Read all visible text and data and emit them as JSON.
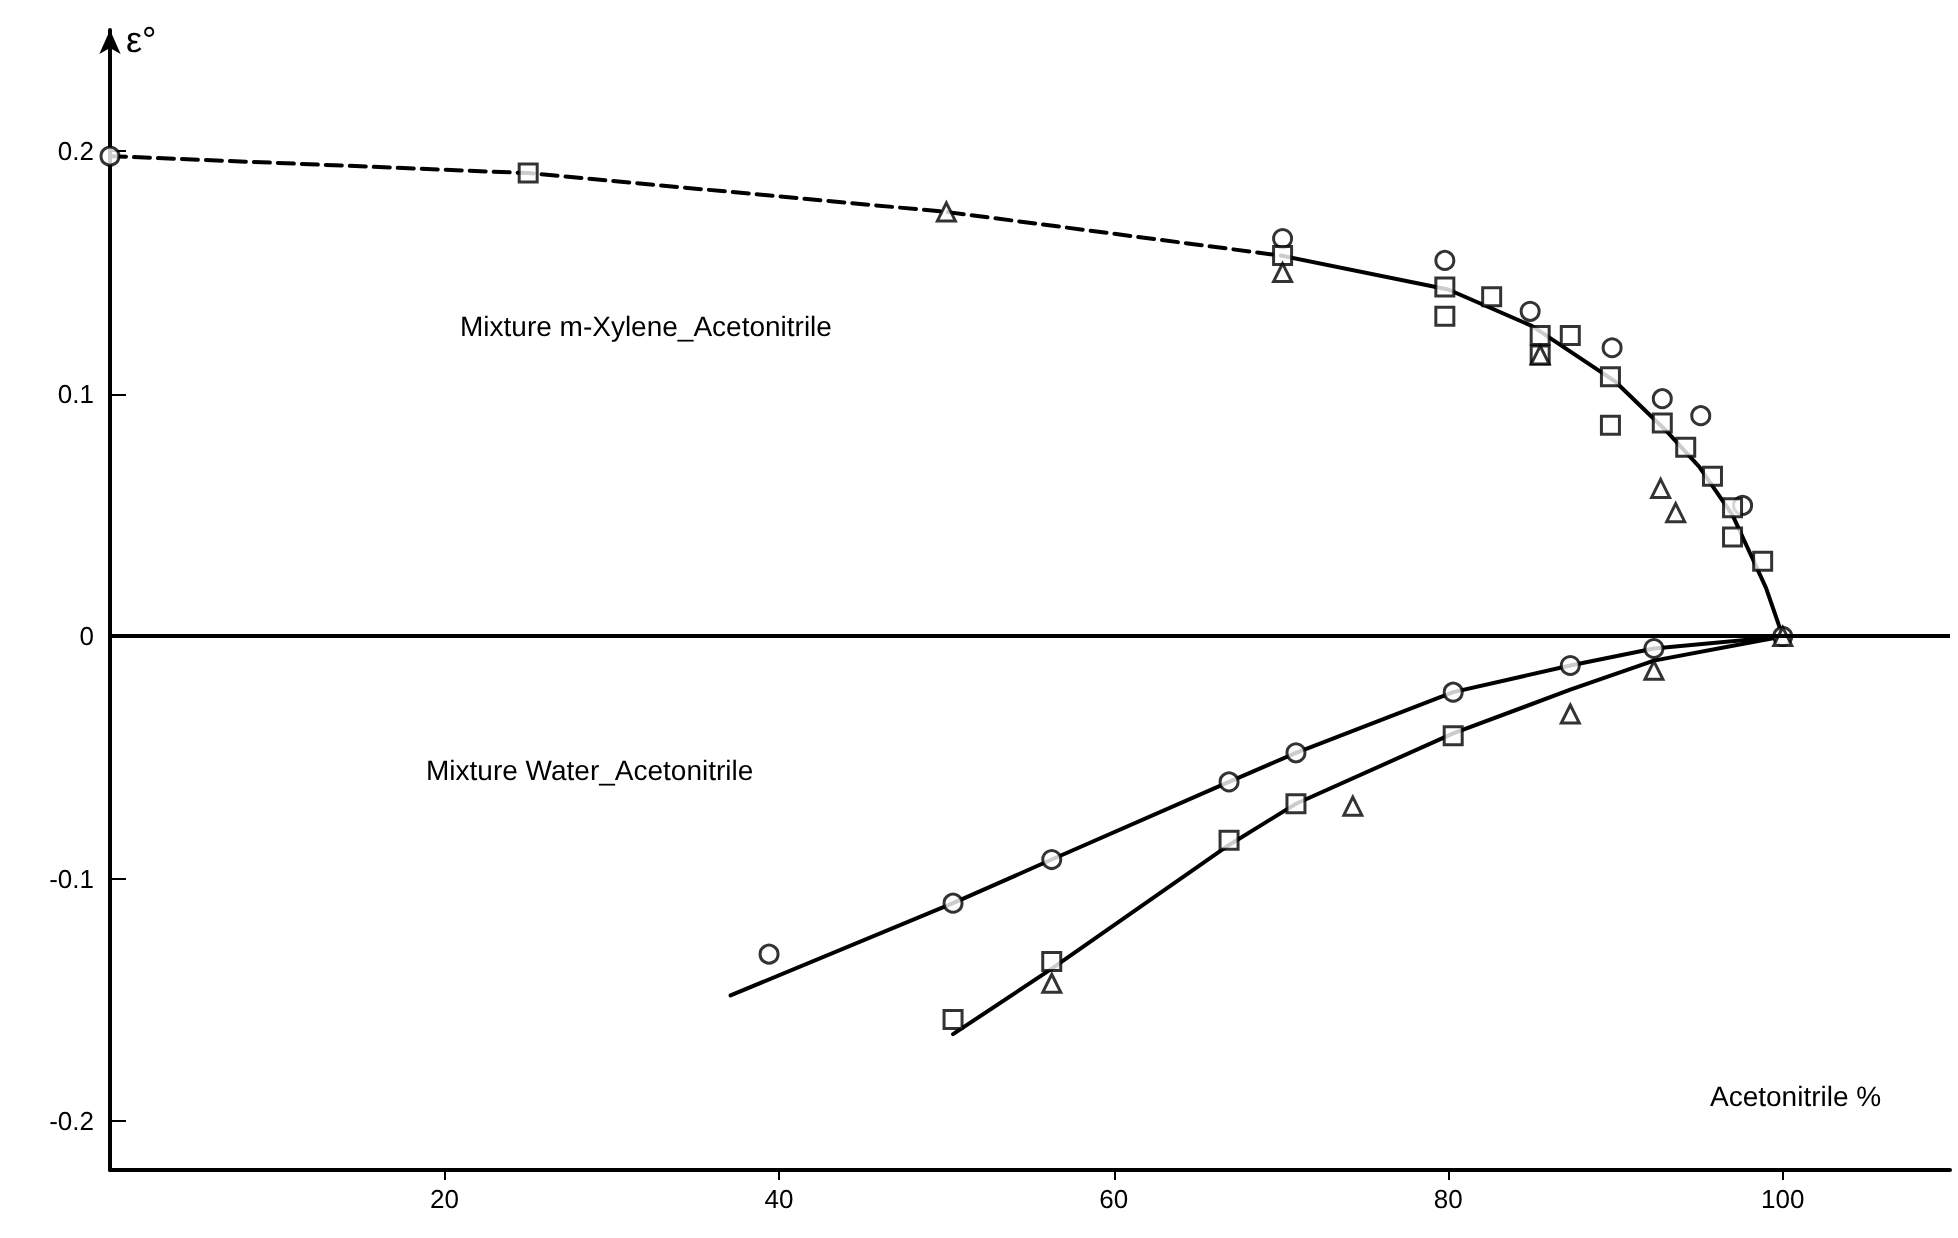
{
  "chart_data": {
    "type": "line",
    "xlabel": "Acetonitrile %",
    "ylabel": "ε°",
    "xlim": [
      0,
      110
    ],
    "xticks": [
      20,
      40,
      60,
      80,
      100
    ],
    "ylim": [
      -0.22,
      0.25
    ],
    "yticks": [
      -0.2,
      -0.1,
      0,
      0.1,
      0.2
    ],
    "grid": false,
    "ref_lines": [
      {
        "axis": "y",
        "value": 0,
        "color": "#000000"
      }
    ],
    "annotations": [
      "Mixture m-Xylene_Acetonitrile",
      "Mixture Water_Acetonitrile"
    ],
    "series": [
      {
        "color": "#000000",
        "line_style": "dashed",
        "marker": "none",
        "x": [
          0,
          25,
          50,
          70
        ],
        "values": [
          0.198,
          0.191,
          0.175,
          0.157
        ]
      },
      {
        "color": "#000000",
        "line_style": "solid",
        "marker": "none",
        "x": [
          70,
          80,
          85,
          90,
          93,
          95,
          97,
          98,
          99,
          100
        ],
        "values": [
          0.157,
          0.143,
          0.128,
          0.105,
          0.085,
          0.07,
          0.05,
          0.035,
          0.02,
          0
        ]
      },
      {
        "color": "#000000",
        "line_style": "solid",
        "marker": "none",
        "x": [
          37.1,
          50.4,
          56.3,
          66.9,
          70.9,
          80.3,
          87.3,
          92.3,
          100
        ],
        "values": [
          -0.148,
          -0.11,
          -0.092,
          -0.06,
          -0.048,
          -0.023,
          -0.012,
          -0.005,
          0
        ]
      },
      {
        "color": "#000000",
        "line_style": "solid",
        "marker": "none",
        "x": [
          50.4,
          56.3,
          66.9,
          70.9,
          80.3,
          87.3,
          92.3,
          100
        ],
        "values": [
          -0.164,
          -0.137,
          -0.086,
          -0.069,
          -0.04,
          -0.022,
          -0.01,
          0
        ]
      },
      {
        "type": "scatter",
        "color": "#000000",
        "marker": "circle",
        "x": [
          0,
          70.1,
          79.8,
          84.9,
          89.8,
          92.8,
          95.1,
          97.6,
          100,
          39.4,
          50.4,
          56.3,
          66.9,
          70.9,
          80.3,
          87.3,
          92.3
        ],
        "values": [
          0.198,
          0.164,
          0.155,
          0.134,
          0.119,
          0.098,
          0.091,
          0.054,
          0,
          -0.131,
          -0.11,
          -0.092,
          -0.06,
          -0.048,
          -0.023,
          -0.012,
          -0.005
        ]
      },
      {
        "type": "scatter",
        "color": "#000000",
        "marker": "square",
        "x": [
          25,
          70.1,
          79.8,
          79.8,
          82.6,
          85.5,
          85.5,
          87.3,
          89.7,
          89.7,
          92.8,
          94.2,
          95.8,
          97,
          97,
          98.8,
          50.4,
          56.3,
          66.9,
          70.9,
          80.3
        ],
        "values": [
          0.191,
          0.157,
          0.144,
          0.132,
          0.14,
          0.124,
          0.116,
          0.124,
          0.107,
          0.087,
          0.088,
          0.078,
          0.066,
          0.053,
          0.041,
          0.031,
          -0.158,
          -0.134,
          -0.084,
          -0.069,
          -0.041
        ]
      },
      {
        "type": "scatter",
        "color": "#000000",
        "marker": "triangle",
        "x": [
          50,
          70.1,
          85.5,
          92.7,
          93.6,
          56.3,
          74.3,
          87.3,
          92.3,
          100
        ],
        "values": [
          0.175,
          0.15,
          0.116,
          0.061,
          0.051,
          -0.143,
          -0.07,
          -0.032,
          -0.014,
          0
        ]
      }
    ]
  }
}
